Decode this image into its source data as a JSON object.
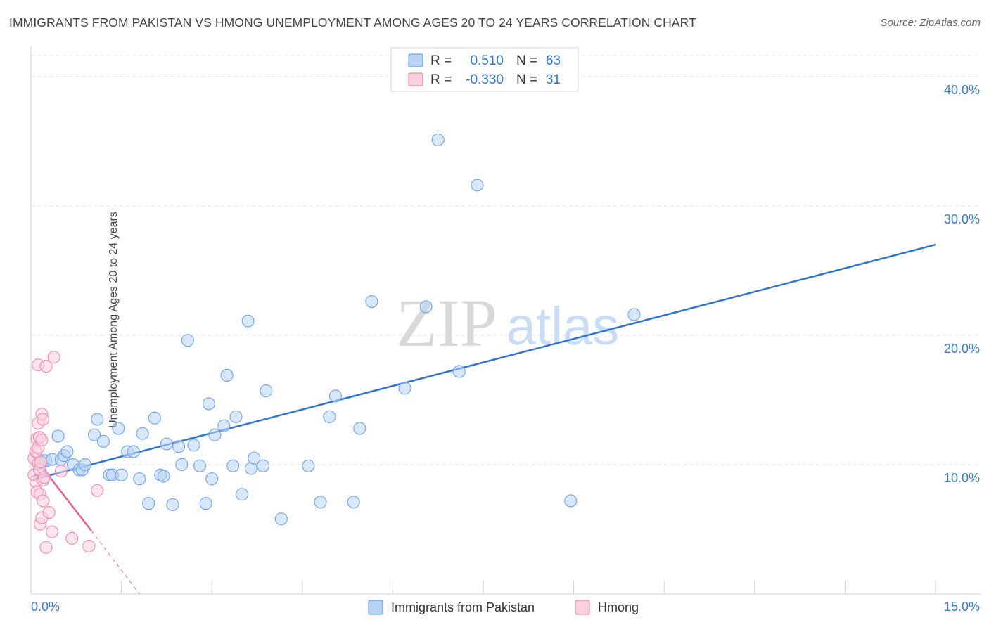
{
  "title": "IMMIGRANTS FROM PAKISTAN VS HMONG UNEMPLOYMENT AMONG AGES 20 TO 24 YEARS CORRELATION CHART",
  "source": "Source: ZipAtlas.com",
  "watermark": {
    "zip": "ZIP",
    "atlas": "atlas"
  },
  "legend_stats": [
    {
      "r_label": "R =",
      "r_value": "0.510",
      "n_label": "N =",
      "n_value": "63",
      "color": "#6fa3e8",
      "fill": "#b9d3f5"
    },
    {
      "r_label": "R =",
      "r_value": "-0.330",
      "n_label": "N =",
      "n_value": "31",
      "color": "#f08bb0",
      "fill": "#fbd0de"
    }
  ],
  "chart_data": {
    "type": "scatter",
    "title": "IMMIGRANTS FROM PAKISTAN VS HMONG UNEMPLOYMENT AMONG AGES 20 TO 24 YEARS CORRELATION CHART",
    "xlabel": "",
    "ylabel": "Unemployment Among Ages 20 to 24 years",
    "xlim": [
      0,
      15
    ],
    "ylim": [
      0,
      42
    ],
    "x_tick_labels": [
      "0.0%",
      "15.0%"
    ],
    "y_ticks": [
      10,
      20,
      30,
      40
    ],
    "y_tick_labels": [
      "10.0%",
      "20.0%",
      "30.0%",
      "40.0%"
    ],
    "grid": true,
    "series": [
      {
        "name": "Immigrants from Pakistan",
        "color": "#6fa3e8",
        "fill": "#b9d3f5",
        "line_color": "#2f74d0",
        "trend": {
          "x": [
            0.0,
            15.0
          ],
          "y": [
            8.8,
            27.0
          ],
          "dashed_from": null
        },
        "points": [
          [
            0.15,
            9.5
          ],
          [
            0.2,
            10.3
          ],
          [
            0.25,
            10.3
          ],
          [
            0.35,
            10.4
          ],
          [
            0.45,
            12.2
          ],
          [
            0.5,
            10.4
          ],
          [
            0.55,
            10.7
          ],
          [
            0.6,
            11.0
          ],
          [
            0.7,
            10.0
          ],
          [
            0.8,
            9.6
          ],
          [
            0.85,
            9.6
          ],
          [
            0.9,
            10.0
          ],
          [
            1.05,
            12.3
          ],
          [
            1.1,
            13.5
          ],
          [
            1.2,
            11.8
          ],
          [
            1.3,
            9.2
          ],
          [
            1.35,
            9.2
          ],
          [
            1.45,
            12.8
          ],
          [
            1.5,
            9.2
          ],
          [
            1.6,
            11.0
          ],
          [
            1.7,
            11.0
          ],
          [
            1.8,
            8.9
          ],
          [
            1.85,
            12.4
          ],
          [
            1.95,
            7.0
          ],
          [
            2.05,
            13.6
          ],
          [
            2.15,
            9.2
          ],
          [
            2.2,
            9.1
          ],
          [
            2.25,
            11.6
          ],
          [
            2.35,
            6.9
          ],
          [
            2.45,
            11.4
          ],
          [
            2.5,
            10.0
          ],
          [
            2.6,
            19.6
          ],
          [
            2.7,
            11.5
          ],
          [
            2.8,
            9.9
          ],
          [
            2.9,
            7.0
          ],
          [
            2.95,
            14.7
          ],
          [
            3.0,
            8.9
          ],
          [
            3.05,
            12.3
          ],
          [
            3.2,
            13.0
          ],
          [
            3.25,
            16.9
          ],
          [
            3.35,
            9.9
          ],
          [
            3.4,
            13.7
          ],
          [
            3.5,
            7.7
          ],
          [
            3.6,
            21.1
          ],
          [
            3.65,
            9.7
          ],
          [
            3.7,
            10.5
          ],
          [
            3.85,
            9.9
          ],
          [
            3.9,
            15.7
          ],
          [
            4.15,
            5.8
          ],
          [
            4.6,
            9.9
          ],
          [
            4.8,
            7.1
          ],
          [
            4.95,
            13.7
          ],
          [
            5.05,
            15.3
          ],
          [
            5.35,
            7.1
          ],
          [
            5.45,
            12.8
          ],
          [
            5.65,
            22.6
          ],
          [
            6.2,
            15.9
          ],
          [
            6.55,
            22.2
          ],
          [
            6.75,
            35.1
          ],
          [
            7.1,
            17.2
          ],
          [
            7.4,
            31.6
          ],
          [
            8.95,
            7.2
          ],
          [
            10.0,
            21.6
          ]
        ]
      },
      {
        "name": "Hmong",
        "color": "#f08bb0",
        "fill": "#fbd0de",
        "line_color": "#e8608f",
        "trend": {
          "x": [
            0.0,
            1.0
          ],
          "y": [
            10.9,
            4.9
          ],
          "dashed_to": [
            1.8,
            0.0
          ]
        },
        "points": [
          [
            0.05,
            9.2
          ],
          [
            0.05,
            10.5
          ],
          [
            0.08,
            11.0
          ],
          [
            0.08,
            8.7
          ],
          [
            0.1,
            12.0
          ],
          [
            0.1,
            7.9
          ],
          [
            0.12,
            10.1
          ],
          [
            0.12,
            13.2
          ],
          [
            0.12,
            17.7
          ],
          [
            0.12,
            11.3
          ],
          [
            0.14,
            9.6
          ],
          [
            0.14,
            12.1
          ],
          [
            0.15,
            7.7
          ],
          [
            0.15,
            5.4
          ],
          [
            0.16,
            10.2
          ],
          [
            0.18,
            13.9
          ],
          [
            0.18,
            11.9
          ],
          [
            0.18,
            5.9
          ],
          [
            0.2,
            8.8
          ],
          [
            0.2,
            7.2
          ],
          [
            0.2,
            13.5
          ],
          [
            0.22,
            9.0
          ],
          [
            0.25,
            17.6
          ],
          [
            0.25,
            3.6
          ],
          [
            0.3,
            6.3
          ],
          [
            0.35,
            4.8
          ],
          [
            0.38,
            18.3
          ],
          [
            0.5,
            9.5
          ],
          [
            0.68,
            4.3
          ],
          [
            0.96,
            3.7
          ],
          [
            1.1,
            8.0
          ]
        ]
      }
    ]
  },
  "bottom_legend": [
    {
      "label": "Immigrants from Pakistan",
      "color": "#6fa3e8",
      "fill": "#b9d3f5"
    },
    {
      "label": "Hmong",
      "color": "#f08bb0",
      "fill": "#fbd0de"
    }
  ]
}
